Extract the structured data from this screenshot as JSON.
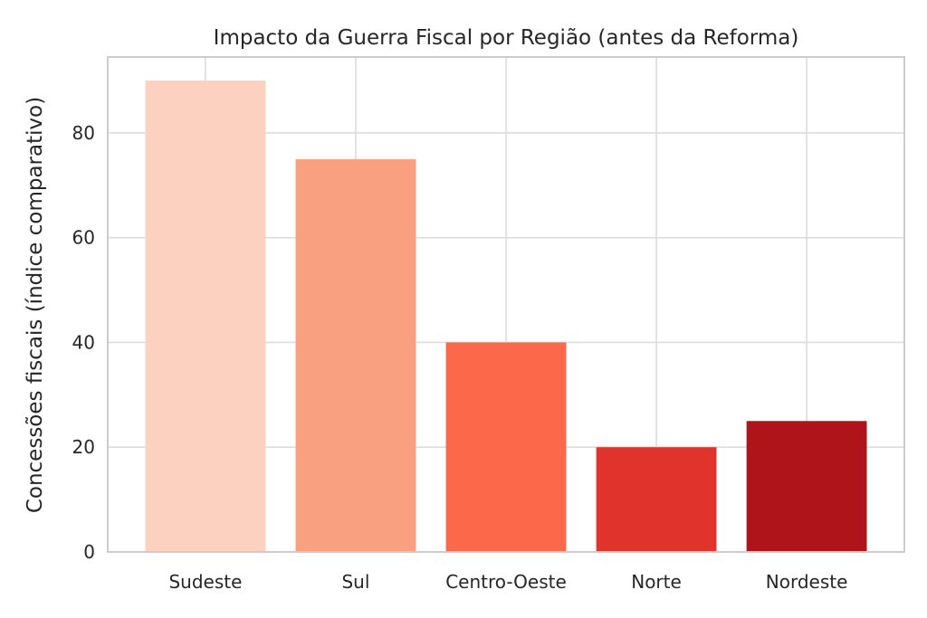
{
  "chart_data": {
    "type": "bar",
    "title": "Impacto da Guerra Fiscal por Região (antes da Reforma)",
    "xlabel": "",
    "ylabel": "Concessões fiscais (índice comparativo)",
    "categories": [
      "Sudeste",
      "Sul",
      "Centro-Oeste",
      "Norte",
      "Nordeste"
    ],
    "values": [
      90,
      75,
      40,
      20,
      25
    ],
    "colors": [
      "#fcd1bf",
      "#f9a081",
      "#fb694a",
      "#e0332c",
      "#b0141b"
    ],
    "ylim": [
      0,
      94.5
    ],
    "yticks": [
      0,
      20,
      40,
      60,
      80
    ],
    "grid": true,
    "legend": "none"
  }
}
